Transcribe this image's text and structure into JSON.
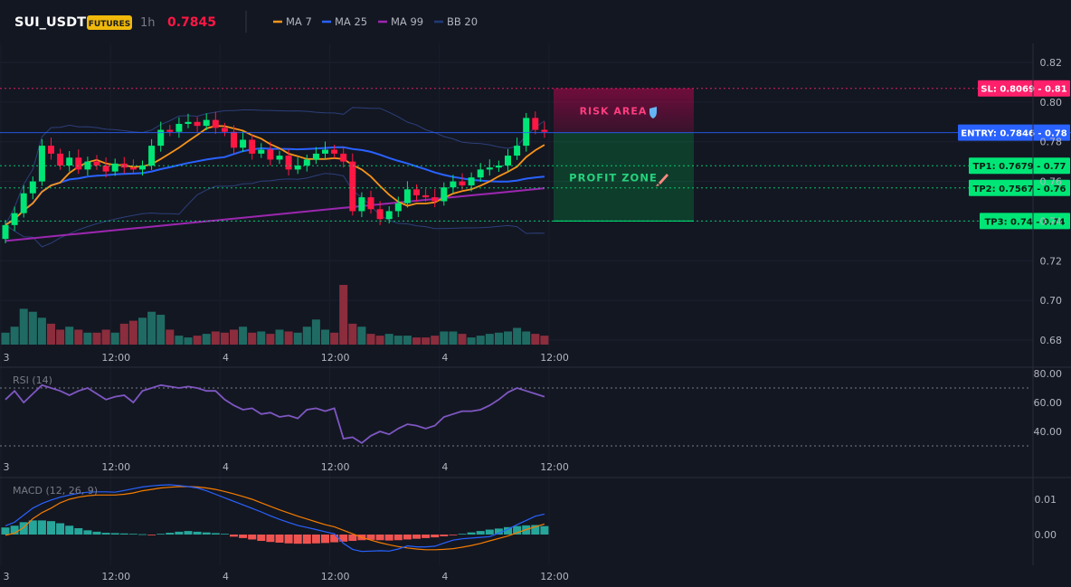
{
  "header": {
    "symbol": "SUI_USDT",
    "badge": "FUTURES",
    "interval": "1h",
    "last_price": "0.7845",
    "legend": [
      {
        "label": "MA 7",
        "color": "#f7931a"
      },
      {
        "label": "MA 25",
        "color": "#2962ff"
      },
      {
        "label": "MA 99",
        "color": "#9c27b0"
      },
      {
        "label": "BB 20",
        "color": "#1e3a78"
      }
    ]
  },
  "colors": {
    "background": "#131722",
    "up": "#26a69a",
    "up_bright": "#00e676",
    "down": "#ef5350",
    "down_bright": "#ff1744",
    "risk": "#ff0066",
    "profit": "#00e676",
    "entry": "#2962ff",
    "rsi": "#7e57c2",
    "macd": "#2962ff",
    "signal": "#f57c00"
  },
  "x_axis": {
    "ticks": [
      {
        "label": "3",
        "bar": 0.5
      },
      {
        "label": "12:00",
        "bar": 12.5
      },
      {
        "label": "4",
        "bar": 24.5
      },
      {
        "label": "12:00",
        "bar": 36.5
      },
      {
        "label": "4",
        "bar": 48.5
      },
      {
        "label": "12:00",
        "bar": 60.5
      }
    ]
  },
  "chart_data": [
    {
      "type": "candlestick",
      "title": "SUI_USDT 1h",
      "ylim": [
        0.675,
        0.825
      ],
      "yticks": [
        0.68,
        0.7,
        0.72,
        0.74,
        0.76,
        0.78,
        0.8,
        0.82
      ],
      "close": [
        0.738,
        0.744,
        0.754,
        0.76,
        0.778,
        0.774,
        0.768,
        0.772,
        0.766,
        0.77,
        0.768,
        0.765,
        0.769,
        0.767,
        0.766,
        0.768,
        0.778,
        0.786,
        0.785,
        0.789,
        0.79,
        0.788,
        0.791,
        0.787,
        0.785,
        0.777,
        0.781,
        0.774,
        0.776,
        0.771,
        0.773,
        0.766,
        0.768,
        0.771,
        0.774,
        0.776,
        0.774,
        0.77,
        0.745,
        0.752,
        0.746,
        0.741,
        0.745,
        0.749,
        0.756,
        0.753,
        0.752,
        0.75,
        0.757,
        0.76,
        0.758,
        0.762,
        0.766,
        0.767,
        0.768,
        0.773,
        0.778,
        0.792,
        0.786,
        0.785
      ],
      "volume_level": [
        0.2,
        0.3,
        0.6,
        0.55,
        0.45,
        0.35,
        0.25,
        0.3,
        0.25,
        0.2,
        0.2,
        0.25,
        0.2,
        0.35,
        0.4,
        0.45,
        0.55,
        0.5,
        0.25,
        0.15,
        0.12,
        0.15,
        0.18,
        0.22,
        0.2,
        0.25,
        0.3,
        0.2,
        0.22,
        0.18,
        0.25,
        0.22,
        0.2,
        0.3,
        0.42,
        0.25,
        0.2,
        1.0,
        0.35,
        0.3,
        0.18,
        0.15,
        0.18,
        0.15,
        0.15,
        0.12,
        0.12,
        0.15,
        0.22,
        0.22,
        0.18,
        0.12,
        0.15,
        0.18,
        0.2,
        0.22,
        0.28,
        0.22,
        0.18,
        0.15
      ],
      "levels": [
        {
          "name": "SL",
          "value": 0.8069,
          "label": "SL: 0.8069 - 0.81"
        },
        {
          "name": "ENTRY",
          "value": 0.7846,
          "label": "ENTRY: 0.7846 - 0.78"
        },
        {
          "name": "TP1",
          "value": 0.7679,
          "label": "TP1: 0.7679 - 0.77"
        },
        {
          "name": "TP2",
          "value": 0.7567,
          "label": "TP2: 0.7567 - 0.76"
        },
        {
          "name": "TP3",
          "value": 0.74,
          "label": "TP3: 0.74 - 0.74"
        }
      ],
      "zones": {
        "risk_label": "RISK AREA",
        "profit_label": "PROFIT ZONE"
      }
    },
    {
      "type": "line",
      "title": "RSI (14)",
      "ylim": [
        27,
        85
      ],
      "yticks": [
        "80.00",
        "60.00",
        "40.00"
      ],
      "bands": [
        70,
        30
      ],
      "values": [
        62,
        68,
        60,
        66,
        72,
        70,
        68,
        65,
        68,
        70,
        66,
        62,
        64,
        65,
        60,
        68,
        70,
        72,
        71,
        70,
        71,
        70,
        68,
        68,
        62,
        58,
        55,
        56,
        52,
        53,
        50,
        51,
        49,
        55,
        56,
        54,
        56,
        35,
        36,
        32,
        37,
        40,
        38,
        42,
        45,
        44,
        42,
        44,
        50,
        52,
        54,
        54,
        55,
        58,
        62,
        67,
        70,
        68,
        66,
        64
      ]
    },
    {
      "type": "bar+line",
      "title": "MACD (12, 26, 9)",
      "ylim": [
        -0.0125,
        0.0155
      ],
      "yticks": [
        "0.01",
        "0.00"
      ],
      "macd": [
        0.0025,
        0.0035,
        0.0055,
        0.0075,
        0.0088,
        0.0098,
        0.0106,
        0.0112,
        0.0117,
        0.012,
        0.0121,
        0.0121,
        0.012,
        0.0125,
        0.013,
        0.0135,
        0.0138,
        0.014,
        0.0141,
        0.0139,
        0.0136,
        0.0132,
        0.0124,
        0.0114,
        0.0104,
        0.0094,
        0.0084,
        0.0074,
        0.0064,
        0.0053,
        0.0043,
        0.0034,
        0.0026,
        0.002,
        0.0014,
        0.0008,
        0.0002,
        -0.0025,
        -0.0042,
        -0.0048,
        -0.0047,
        -0.0046,
        -0.0047,
        -0.0041,
        -0.0032,
        -0.0035,
        -0.0035,
        -0.0033,
        -0.0024,
        -0.0016,
        -0.0012,
        -0.001,
        -0.0008,
        -0.0006,
        0.0004,
        0.0015,
        0.0028,
        0.004,
        0.0052,
        0.0058
      ],
      "signal": [
        -0.0002,
        0.0004,
        0.002,
        0.0045,
        0.0062,
        0.0075,
        0.009,
        0.01,
        0.0106,
        0.011,
        0.0112,
        0.0112,
        0.0112,
        0.0114,
        0.0118,
        0.0124,
        0.0128,
        0.0132,
        0.0134,
        0.0136,
        0.0136,
        0.0135,
        0.0132,
        0.0128,
        0.0122,
        0.0115,
        0.0108,
        0.01,
        0.009,
        0.008,
        0.007,
        0.0061,
        0.0052,
        0.0044,
        0.0036,
        0.0028,
        0.0022,
        0.0012,
        0.0002,
        -0.0008,
        -0.0016,
        -0.0023,
        -0.0029,
        -0.0034,
        -0.0038,
        -0.0041,
        -0.0043,
        -0.0043,
        -0.0042,
        -0.004,
        -0.0036,
        -0.0031,
        -0.0025,
        -0.0018,
        -0.0011,
        -0.0004,
        0.0005,
        0.0014,
        0.0022,
        0.003
      ],
      "histogram": [
        0.002,
        0.0025,
        0.0035,
        0.004,
        0.004,
        0.0038,
        0.0032,
        0.0025,
        0.0018,
        0.0012,
        0.0008,
        0.0005,
        0.0004,
        0.0003,
        0.0002,
        0.0001,
        -0.0001,
        0.0002,
        0.0005,
        0.0008,
        0.001,
        0.0008,
        0.0006,
        0.0004,
        0.0002,
        -0.0006,
        -0.001,
        -0.0014,
        -0.0018,
        -0.0021,
        -0.0023,
        -0.0025,
        -0.0026,
        -0.0026,
        -0.0025,
        -0.0024,
        -0.0022,
        -0.002,
        -0.0018,
        -0.0016,
        -0.0015,
        -0.0016,
        -0.0017,
        -0.0016,
        -0.0014,
        -0.0012,
        -0.001,
        -0.0008,
        -0.0005,
        -0.0002,
        0.0002,
        0.0006,
        0.001,
        0.0014,
        0.0017,
        0.0021,
        0.0024,
        0.0026,
        0.0027,
        0.0024
      ]
    }
  ]
}
